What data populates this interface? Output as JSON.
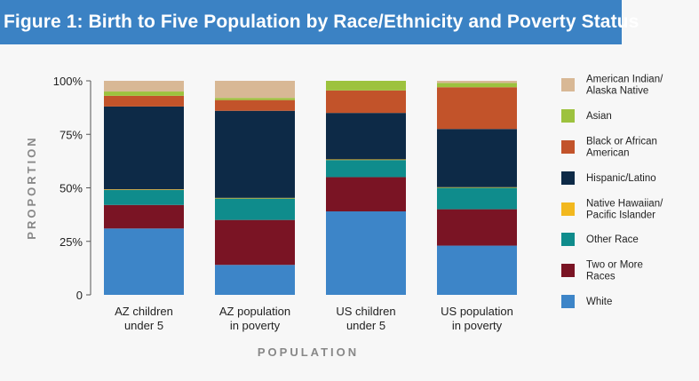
{
  "figure": {
    "title": "Figure 1: Birth to Five Population by Race/Ethnicity and Poverty Status"
  },
  "chart_data": {
    "type": "bar",
    "stacked": true,
    "title": "Figure 1: Birth to Five Population by Race/Ethnicity and Poverty Status",
    "xlabel": "POPULATION",
    "ylabel": "PROPORTION",
    "ylim": [
      0,
      100
    ],
    "yticks": [
      0,
      25,
      50,
      75,
      100
    ],
    "ytick_labels": [
      "0",
      "25%",
      "50%",
      "75%",
      "100%"
    ],
    "categories": [
      [
        "AZ children",
        "under 5"
      ],
      [
        "AZ population",
        "in poverty"
      ],
      [
        "US children",
        "under 5"
      ],
      [
        "US population",
        "in poverty"
      ]
    ],
    "series": [
      {
        "name": [
          "White"
        ],
        "color": "#3d85c8",
        "values": [
          31,
          14,
          39,
          23
        ]
      },
      {
        "name": [
          "Two or More",
          "Races"
        ],
        "color": "#7a1424",
        "values": [
          11,
          21,
          16,
          17
        ]
      },
      {
        "name": [
          "Other Race"
        ],
        "color": "#0f8c8c",
        "values": [
          7,
          10,
          8,
          10
        ]
      },
      {
        "name": [
          "Native Hawaiian/",
          "Pacific Islander"
        ],
        "color": "#f2b81e",
        "values": [
          0.3,
          0.3,
          0.3,
          0.3
        ]
      },
      {
        "name": [
          "Hispanic/Latino"
        ],
        "color": "#0d2a47",
        "values": [
          38.7,
          40.7,
          21.7,
          27.2
        ]
      },
      {
        "name": [
          "Black or African",
          "American"
        ],
        "color": "#c2532a",
        "values": [
          5,
          5,
          10.5,
          19.5
        ]
      },
      {
        "name": [
          "Asian"
        ],
        "color": "#9dc23e",
        "values": [
          2,
          1,
          4.5,
          2
        ]
      },
      {
        "name": [
          "American Indian/",
          "Alaska Native"
        ],
        "color": "#d8b895",
        "values": [
          5,
          8,
          0,
          1
        ]
      }
    ],
    "legend_order": [
      7,
      6,
      5,
      4,
      3,
      2,
      1,
      0
    ],
    "legend_position": "right",
    "grid": false
  }
}
